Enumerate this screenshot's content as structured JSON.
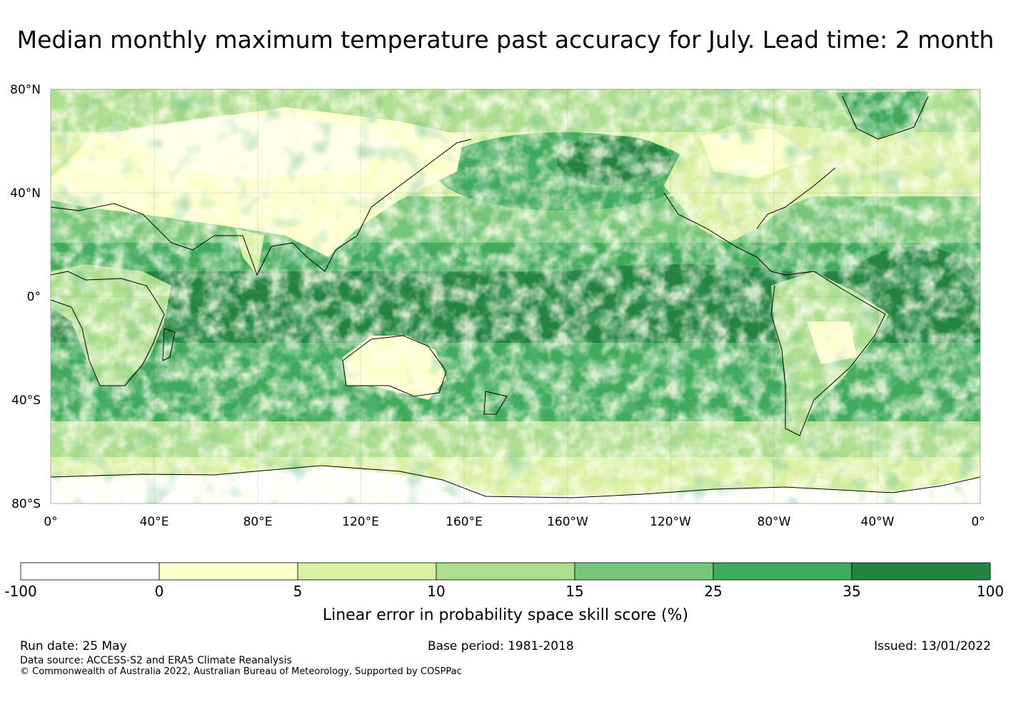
{
  "title": "Median monthly maximum temperature past accuracy for July. Lead time: 2 month",
  "map": {
    "lat_labels": [
      "80°N",
      "40°N",
      "0°",
      "40°S",
      "80°S"
    ],
    "lon_labels": [
      "0°",
      "40°E",
      "80°E",
      "120°E",
      "160°E",
      "160°W",
      "120°W",
      "80°W",
      "40°W",
      "0°"
    ]
  },
  "legend": {
    "colors": [
      "#ffffff",
      "#ffffcc",
      "#d9f0a3",
      "#addd8e",
      "#78c679",
      "#41ab5d",
      "#238443"
    ],
    "ticks": [
      "-100",
      "0",
      "5",
      "10",
      "15",
      "25",
      "35",
      "100"
    ],
    "label": "Linear error in probability space skill score (%)"
  },
  "footer": {
    "run_date": "Run date: 25 May",
    "base_period": "Base period: 1981-2018",
    "issued": "Issued: 13/01/2022",
    "data_source": "Data source: ACCESS-S2 and ERA5 Climate Reanalysis",
    "copyright": "© Commonwealth of Australia 2022, Australian Bureau of Meteorology, Supported by COSPPac"
  }
}
